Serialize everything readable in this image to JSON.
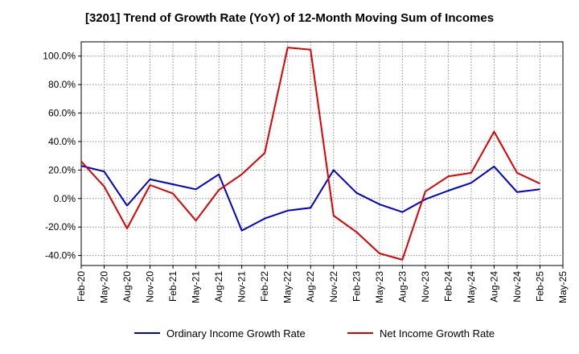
{
  "chart_data": {
    "type": "line",
    "title": "[3201]  Trend of Growth Rate (YoY) of 12-Month Moving Sum of Incomes",
    "xlabel": "",
    "ylabel": "",
    "ylim": [
      -47,
      110
    ],
    "yticks": [
      100,
      80,
      60,
      40,
      20,
      0,
      -20,
      -40
    ],
    "ytick_labels": [
      "100.0%",
      "80.0%",
      "60.0%",
      "40.0%",
      "20.0%",
      "0.0%",
      "-20.0%",
      "-40.0%"
    ],
    "x_tick_labels": [
      "Feb-20",
      "May-20",
      "Aug-20",
      "Nov-20",
      "Feb-21",
      "May-21",
      "Aug-21",
      "Nov-21",
      "Feb-22",
      "May-22",
      "Aug-22",
      "Nov-22",
      "Feb-23",
      "May-23",
      "Aug-23",
      "Nov-23",
      "Feb-24",
      "May-24",
      "Aug-24",
      "Nov-24",
      "Feb-25",
      "May-25"
    ],
    "grid": true,
    "legend_position": "bottom",
    "series": [
      {
        "name": "Ordinary Income Growth Rate",
        "color": "#0000cc",
        "points": [
          [
            "Feb-20",
            23.0
          ],
          [
            "May-20",
            19.0
          ],
          [
            "Aug-20",
            -5.0
          ],
          [
            "Nov-20",
            13.5
          ],
          [
            "Feb-21",
            10.0
          ],
          [
            "May-21",
            6.5
          ],
          [
            "Aug-21",
            17.0
          ],
          [
            "Nov-21",
            -22.5
          ],
          [
            "Feb-22",
            -14.0
          ],
          [
            "May-22",
            -8.5
          ],
          [
            "Aug-22",
            -6.5
          ],
          [
            "Nov-22",
            20.0
          ],
          [
            "Feb-23",
            4.0
          ],
          [
            "May-23",
            -4.0
          ],
          [
            "Aug-23",
            -9.5
          ],
          [
            "Nov-23",
            -0.5
          ],
          [
            "Feb-24",
            5.5
          ],
          [
            "May-24",
            11.0
          ],
          [
            "Aug-24",
            22.5
          ],
          [
            "Nov-24",
            4.5
          ],
          [
            "Feb-25",
            6.5
          ]
        ]
      },
      {
        "name": "Net Income Growth Rate",
        "color": "#dd0000",
        "points": [
          [
            "Feb-20",
            26.0
          ],
          [
            "May-20",
            8.5
          ],
          [
            "Aug-20",
            -21.0
          ],
          [
            "Nov-20",
            9.5
          ],
          [
            "Feb-21",
            3.5
          ],
          [
            "May-21",
            -15.5
          ],
          [
            "Aug-21",
            6.0
          ],
          [
            "Nov-21",
            17.0
          ],
          [
            "Feb-22",
            32.0
          ],
          [
            "May-22",
            106.0
          ],
          [
            "Aug-22",
            104.5
          ],
          [
            "Nov-22",
            -12.0
          ],
          [
            "Feb-23",
            -23.5
          ],
          [
            "May-23",
            -38.5
          ],
          [
            "Aug-23",
            -43.0
          ],
          [
            "Nov-23",
            5.0
          ],
          [
            "Feb-24",
            15.5
          ],
          [
            "May-24",
            18.0
          ],
          [
            "Aug-24",
            47.0
          ],
          [
            "Nov-24",
            18.0
          ],
          [
            "Feb-25",
            10.5
          ]
        ]
      }
    ]
  }
}
